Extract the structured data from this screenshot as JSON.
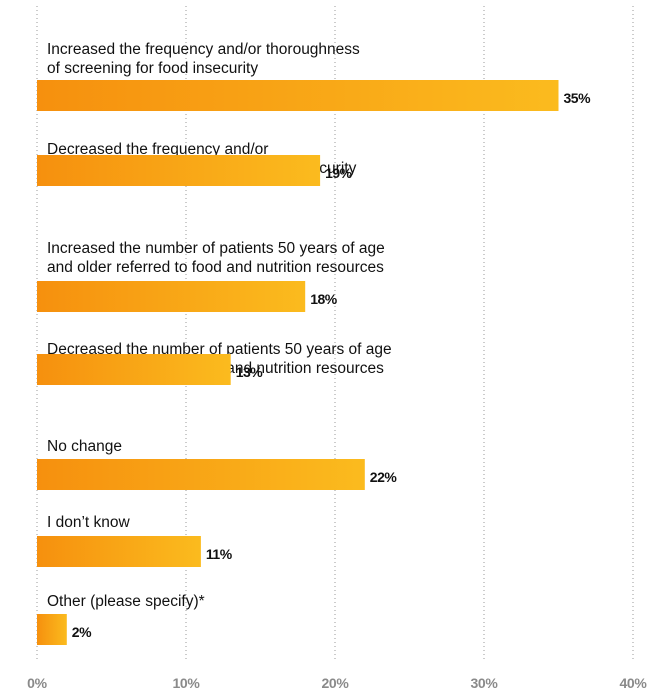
{
  "chart_data": {
    "type": "bar",
    "orientation": "horizontal",
    "title": "",
    "xlabel": "",
    "ylabel": "",
    "xlim": [
      0,
      40
    ],
    "x_ticks": [
      {
        "value": 0,
        "label": "0%"
      },
      {
        "value": 10,
        "label": "10%"
      },
      {
        "value": 20,
        "label": "20%"
      },
      {
        "value": 30,
        "label": "30%"
      },
      {
        "value": 40,
        "label": "40%"
      }
    ],
    "grid": "vertical dotted",
    "bar_gradient": [
      "#f6900e",
      "#fbbb1e"
    ],
    "categories": [
      {
        "lines": [
          "Increased the frequency and/or thoroughness",
          "of screening for food insecurity"
        ],
        "value": 35,
        "value_label": "35%"
      },
      {
        "lines": [
          "Decreased the frequency and/or",
          "thoroughness of screening for food insecurity"
        ],
        "value": 19,
        "value_label": "19%"
      },
      {
        "lines": [
          "Increased the number of patients 50 years of age",
          "and older referred to food and nutrition resources"
        ],
        "value": 18,
        "value_label": "18%"
      },
      {
        "lines": [
          "Decreased the number of patients 50 years of age",
          "and older referred to food and nutrition resources"
        ],
        "value": 13,
        "value_label": "13%"
      },
      {
        "lines": [
          "No change"
        ],
        "value": 22,
        "value_label": "22%"
      },
      {
        "lines": [
          "I don’t know"
        ],
        "value": 11,
        "value_label": "11%"
      },
      {
        "lines": [
          "Other (please specify)*"
        ],
        "value": 2,
        "value_label": "2%"
      }
    ]
  }
}
